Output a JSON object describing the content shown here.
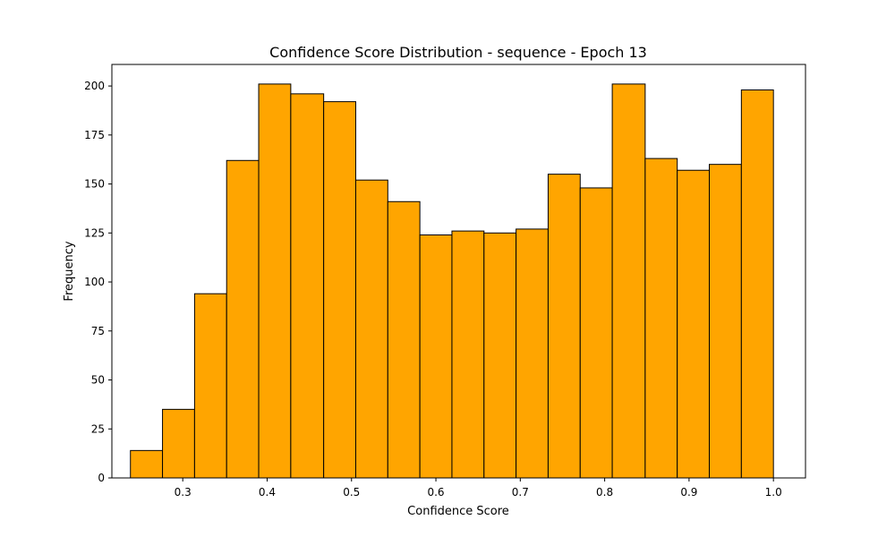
{
  "chart_data": {
    "type": "bar",
    "title": "Confidence Score Distribution - sequence - Epoch 13",
    "xlabel": "Confidence Score",
    "ylabel": "Frequency",
    "xlim": [
      0.216,
      1.038
    ],
    "ylim": [
      0,
      211
    ],
    "grid": false,
    "bar_color": "#ffa500",
    "edge_color": "#000000",
    "bin_edges": [
      0.238,
      0.276,
      0.314,
      0.352,
      0.39,
      0.428,
      0.467,
      0.505,
      0.543,
      0.581,
      0.619,
      0.657,
      0.695,
      0.733,
      0.771,
      0.809,
      0.848,
      0.886,
      0.924,
      0.962,
      1.0
    ],
    "values": [
      14,
      35,
      94,
      162,
      201,
      196,
      192,
      152,
      141,
      124,
      126,
      125,
      127,
      155,
      148,
      201,
      163,
      157,
      160,
      198
    ],
    "xticks": [
      0.3,
      0.4,
      0.5,
      0.6,
      0.7,
      0.8,
      0.9,
      1.0
    ],
    "xtick_labels": [
      "0.3",
      "0.4",
      "0.5",
      "0.6",
      "0.7",
      "0.8",
      "0.9",
      "1.0"
    ],
    "yticks": [
      0,
      25,
      50,
      75,
      100,
      125,
      150,
      175,
      200
    ],
    "ytick_labels": [
      "0",
      "25",
      "50",
      "75",
      "100",
      "125",
      "150",
      "175",
      "200"
    ]
  }
}
